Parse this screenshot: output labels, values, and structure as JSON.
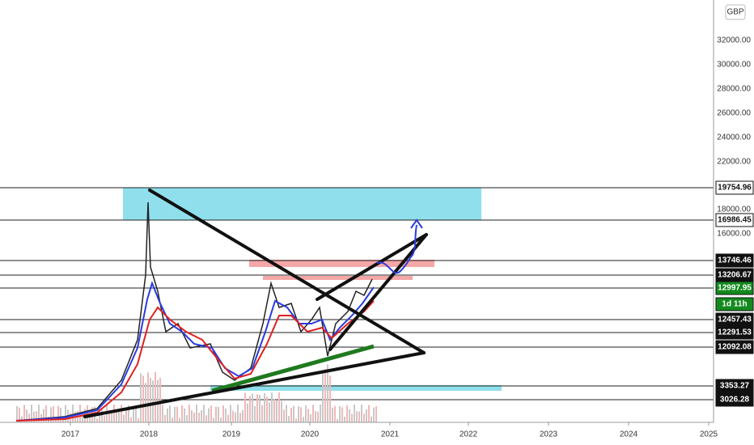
{
  "currency": "GBP",
  "price_axis": [
    "32000.00",
    "30000.00",
    "28000.00",
    "26000.00",
    "24000.00",
    "22000.00",
    "18000.00",
    "16000.00"
  ],
  "price_tags": [
    "19754.96",
    "16986.45",
    "13746.46",
    "13206.67",
    "12997.95",
    "1d 11h",
    "12457.43",
    "12291.53",
    "12092.08",
    "3353.27",
    "3026.28"
  ],
  "time_axis": [
    "2017",
    "2018",
    "2019",
    "2020",
    "2021",
    "2022",
    "2023",
    "2024",
    "2025"
  ]
}
